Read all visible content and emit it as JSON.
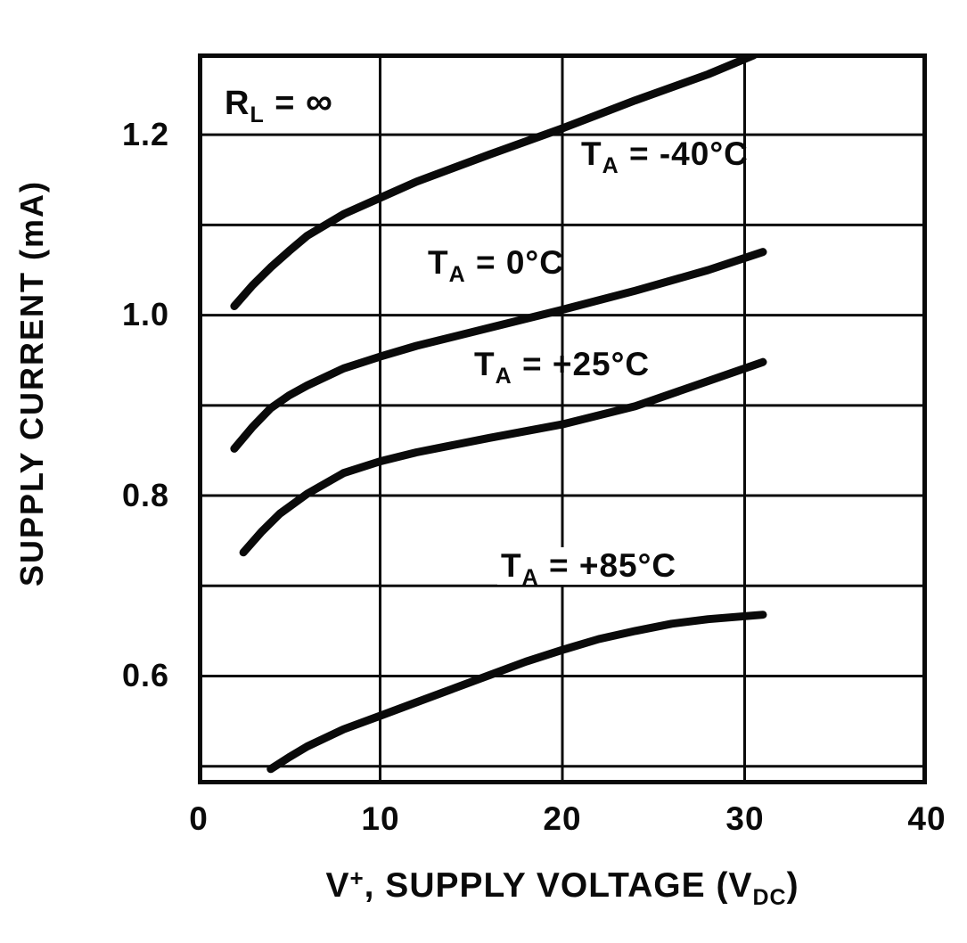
{
  "axes": {
    "y_title": "SUPPLY CURRENT (mA)",
    "x_title": {
      "v": "V",
      "sup": "+",
      "mid": ", SUPPLY VOLTAGE (V",
      "sub": "DC",
      "end": ")"
    },
    "x_ticks": [
      "0",
      "10",
      "20",
      "30",
      "40"
    ],
    "y_ticks": [
      "1.2",
      "1.0",
      "0.8",
      "0.6"
    ]
  },
  "annotation": {
    "r": "R",
    "sub": "L",
    "eq": " = ",
    "infinity": "∞"
  },
  "curve_labels": [
    {
      "t": "T",
      "sub": "A",
      "eq": " = -40°C"
    },
    {
      "t": "T",
      "sub": "A",
      "eq": " = 0°C"
    },
    {
      "t": "T",
      "sub": "A",
      "eq": " = +25°C"
    },
    {
      "t": "T",
      "sub": "A",
      "eq": " = +85°C"
    }
  ],
  "chart_data": {
    "type": "line",
    "title": "",
    "xlabel": "V+, SUPPLY VOLTAGE (VDC)",
    "ylabel": "SUPPLY CURRENT (mA)",
    "xlim": [
      0,
      40
    ],
    "ylim": [
      0.48,
      1.29
    ],
    "x_ticks": [
      0,
      10,
      20,
      30,
      40
    ],
    "y_ticks": [
      1.2,
      1.0,
      0.8,
      0.6
    ],
    "x_gridlines": [
      10,
      20,
      30
    ],
    "y_gridlines": [
      0.5,
      0.6,
      0.7,
      0.8,
      0.9,
      1.0,
      1.1,
      1.2
    ],
    "grid_color": "#0a0a0a",
    "line_color": "#0a0a0a",
    "annotation": "RL = ∞",
    "series": [
      {
        "name": "TA = -40°C",
        "points": [
          [
            2,
            1.01
          ],
          [
            3,
            1.033
          ],
          [
            4,
            1.053
          ],
          [
            5,
            1.071
          ],
          [
            6,
            1.088
          ],
          [
            8,
            1.112
          ],
          [
            10,
            1.13
          ],
          [
            12,
            1.148
          ],
          [
            16,
            1.178
          ],
          [
            20,
            1.207
          ],
          [
            24,
            1.238
          ],
          [
            28,
            1.267
          ],
          [
            30.5,
            1.288
          ]
        ]
      },
      {
        "name": "TA = 0°C",
        "points": [
          [
            2,
            0.852
          ],
          [
            3,
            0.876
          ],
          [
            4,
            0.897
          ],
          [
            5,
            0.911
          ],
          [
            6,
            0.922
          ],
          [
            8,
            0.941
          ],
          [
            10,
            0.954
          ],
          [
            12,
            0.966
          ],
          [
            16,
            0.986
          ],
          [
            20,
            1.006
          ],
          [
            24,
            1.027
          ],
          [
            28,
            1.05
          ],
          [
            31,
            1.07
          ]
        ]
      },
      {
        "name": "TA = +25°C",
        "points": [
          [
            2.5,
            0.737
          ],
          [
            3.5,
            0.76
          ],
          [
            4.5,
            0.78
          ],
          [
            6,
            0.802
          ],
          [
            8,
            0.825
          ],
          [
            10,
            0.838
          ],
          [
            12,
            0.848
          ],
          [
            16,
            0.864
          ],
          [
            20,
            0.879
          ],
          [
            24,
            0.899
          ],
          [
            28,
            0.927
          ],
          [
            31,
            0.948
          ]
        ]
      },
      {
        "name": "TA = +85°C",
        "points": [
          [
            4,
            0.497
          ],
          [
            5,
            0.51
          ],
          [
            6,
            0.522
          ],
          [
            8,
            0.541
          ],
          [
            10,
            0.556
          ],
          [
            12,
            0.571
          ],
          [
            14,
            0.586
          ],
          [
            16,
            0.601
          ],
          [
            18,
            0.616
          ],
          [
            20,
            0.629
          ],
          [
            22,
            0.641
          ],
          [
            24,
            0.65
          ],
          [
            26,
            0.658
          ],
          [
            28,
            0.663
          ],
          [
            31,
            0.668
          ]
        ]
      }
    ]
  }
}
